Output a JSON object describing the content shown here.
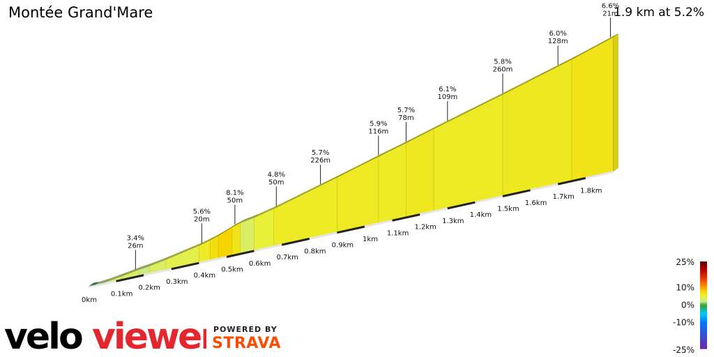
{
  "title": "Montée Grand'Mare",
  "summary": "1.9 km at 5.2%",
  "brand": {
    "velo": "velo",
    "viewer": "viewer",
    "powered_by": "POWERED BY",
    "strava": "STRAVA"
  },
  "chart_data": {
    "type": "area",
    "subtype": "3d-elevation-profile",
    "x_unit": "km",
    "x_tick_labels": [
      "0km",
      "0.1km",
      "0.2km",
      "0.3km",
      "0.4km",
      "0.5km",
      "0.6km",
      "0.7km",
      "0.8km",
      "0.9km",
      "1km",
      "1.1km",
      "1.2km",
      "1.3km",
      "1.4km",
      "1.5km",
      "1.6km",
      "1.7km",
      "1.8km"
    ],
    "xlim": [
      0,
      1.9
    ],
    "grade_color_scale": {
      "labels": [
        "25%",
        "10%",
        "0%",
        "-10%",
        "-25%"
      ]
    },
    "segment_grades": [
      {
        "from": 0.0,
        "to": 0.02,
        "grade": -1.0
      },
      {
        "from": 0.02,
        "to": 0.06,
        "grade": 2.0
      },
      {
        "from": 0.06,
        "to": 0.12,
        "grade": 3.0
      },
      {
        "from": 0.12,
        "to": 0.18,
        "grade": 3.4
      },
      {
        "from": 0.18,
        "to": 0.22,
        "grade": 2.5
      },
      {
        "from": 0.22,
        "to": 0.28,
        "grade": 3.6
      },
      {
        "from": 0.28,
        "to": 0.4,
        "grade": 4.2
      },
      {
        "from": 0.4,
        "to": 0.44,
        "grade": 5.6
      },
      {
        "from": 0.44,
        "to": 0.47,
        "grade": 7.0
      },
      {
        "from": 0.47,
        "to": 0.52,
        "grade": 8.1
      },
      {
        "from": 0.52,
        "to": 0.55,
        "grade": 6.5
      },
      {
        "from": 0.55,
        "to": 0.6,
        "grade": 3.5
      },
      {
        "from": 0.6,
        "to": 0.67,
        "grade": 4.8
      },
      {
        "from": 0.67,
        "to": 0.9,
        "grade": 5.7
      },
      {
        "from": 0.9,
        "to": 1.05,
        "grade": 5.9
      },
      {
        "from": 1.05,
        "to": 1.15,
        "grade": 5.7
      },
      {
        "from": 1.15,
        "to": 1.25,
        "grade": 6.1
      },
      {
        "from": 1.25,
        "to": 1.5,
        "grade": 5.8
      },
      {
        "from": 1.5,
        "to": 1.75,
        "grade": 6.0
      },
      {
        "from": 1.75,
        "to": 1.9,
        "grade": 6.6
      }
    ],
    "annotations": [
      {
        "km": 0.17,
        "grade": "3.4%",
        "length": "26m"
      },
      {
        "km": 0.41,
        "grade": "5.6%",
        "length": "20m"
      },
      {
        "km": 0.53,
        "grade": "8.1%",
        "length": "50m"
      },
      {
        "km": 0.68,
        "grade": "4.8%",
        "length": "50m"
      },
      {
        "km": 0.84,
        "grade": "5.7%",
        "length": "226m"
      },
      {
        "km": 1.05,
        "grade": "5.9%",
        "length": "116m"
      },
      {
        "km": 1.15,
        "grade": "5.7%",
        "length": "78m"
      },
      {
        "km": 1.3,
        "grade": "6.1%",
        "length": "109m"
      },
      {
        "km": 1.5,
        "grade": "5.8%",
        "length": "260m"
      },
      {
        "km": 1.7,
        "grade": "6.0%",
        "length": "128m"
      },
      {
        "km": 1.89,
        "grade": "6.6%",
        "length": "21m"
      }
    ]
  }
}
